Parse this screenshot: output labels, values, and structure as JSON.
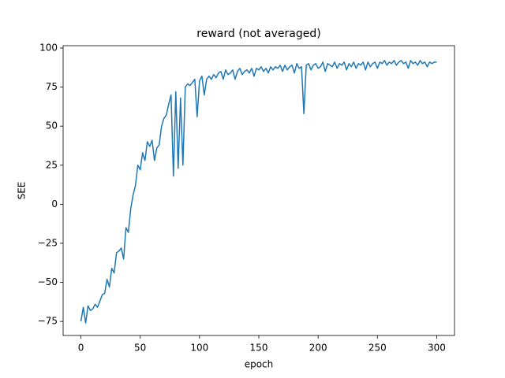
{
  "chart_data": {
    "type": "line",
    "title": "reward (not averaged)",
    "x_label": "epoch",
    "y_label": "SEE",
    "x": [
      0,
      2,
      4,
      6,
      8,
      10,
      12,
      14,
      16,
      18,
      20,
      22,
      24,
      26,
      28,
      30,
      32,
      34,
      36,
      38,
      40,
      42,
      44,
      46,
      48,
      50,
      52,
      54,
      56,
      58,
      60,
      62,
      64,
      66,
      68,
      70,
      72,
      74,
      76,
      78,
      80,
      82,
      84,
      86,
      88,
      90,
      92,
      94,
      96,
      98,
      100,
      102,
      104,
      106,
      108,
      110,
      112,
      114,
      116,
      118,
      120,
      122,
      124,
      126,
      128,
      130,
      132,
      134,
      136,
      138,
      140,
      142,
      144,
      146,
      148,
      150,
      152,
      154,
      156,
      158,
      160,
      162,
      164,
      166,
      168,
      170,
      172,
      174,
      176,
      178,
      180,
      182,
      184,
      186,
      188,
      190,
      192,
      194,
      196,
      198,
      200,
      202,
      204,
      206,
      208,
      210,
      212,
      214,
      216,
      218,
      220,
      222,
      224,
      226,
      228,
      230,
      232,
      234,
      236,
      238,
      240,
      242,
      244,
      246,
      248,
      250,
      252,
      254,
      256,
      258,
      260,
      262,
      264,
      266,
      268,
      270,
      272,
      274,
      276,
      278,
      280,
      282,
      284,
      286,
      288,
      290,
      292,
      294,
      296,
      298,
      300
    ],
    "series": [
      {
        "name": "reward",
        "color": "#1f77b4",
        "values": [
          -75,
          -66,
          -76,
          -65,
          -68,
          -67,
          -64,
          -66,
          -62,
          -58,
          -57,
          -48,
          -53,
          -41,
          -44,
          -31,
          -30,
          -28,
          -35,
          -15,
          -18,
          -3,
          6,
          12,
          25,
          22,
          33,
          28,
          40,
          37,
          41,
          28,
          36,
          38,
          50,
          55,
          57,
          64,
          70,
          18,
          72,
          23,
          68,
          25,
          75,
          77,
          76,
          78,
          80,
          56,
          79,
          82,
          70,
          80,
          82,
          80,
          83,
          81,
          84,
          85,
          80,
          86,
          83,
          84,
          86,
          80,
          85,
          87,
          83,
          85,
          86,
          84,
          87,
          82,
          87,
          86,
          88,
          85,
          87,
          84,
          88,
          86,
          88,
          87,
          89,
          85,
          89,
          86,
          88,
          89,
          84,
          90,
          87,
          88,
          58,
          89,
          90,
          86,
          89,
          90,
          87,
          88,
          91,
          85,
          90,
          89,
          88,
          91,
          87,
          90,
          89,
          91,
          86,
          90,
          88,
          91,
          87,
          90,
          89,
          91,
          86,
          91,
          88,
          90,
          91,
          87,
          91,
          90,
          92,
          89,
          91,
          90,
          92,
          89,
          91,
          92,
          90,
          91,
          87,
          92,
          90,
          91,
          89,
          92,
          90,
          91,
          88,
          91,
          90,
          91,
          91
        ]
      }
    ],
    "xlim": [
      -15,
      315
    ],
    "ylim": [
      -84,
      101.5
    ],
    "xticks": [
      0,
      50,
      100,
      150,
      200,
      250,
      300
    ],
    "yticks": [
      {
        "value": -75,
        "label": "−75"
      },
      {
        "value": -50,
        "label": "−50"
      },
      {
        "value": -25,
        "label": "−25"
      },
      0,
      25,
      50,
      75,
      100
    ]
  }
}
